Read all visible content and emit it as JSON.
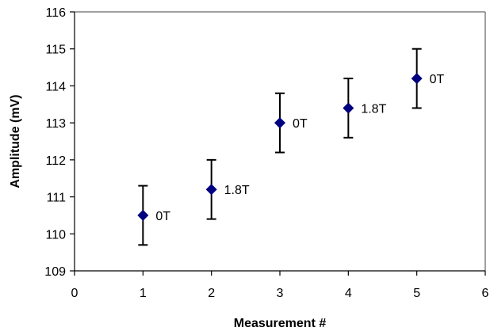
{
  "chart_data": {
    "type": "scatter",
    "title": "",
    "xlabel": "Measurement #",
    "ylabel": "Amplitude (mV)",
    "xlim": [
      0,
      6
    ],
    "ylim": [
      109,
      116
    ],
    "xticks": [
      0,
      1,
      2,
      3,
      4,
      5,
      6
    ],
    "yticks": [
      109,
      110,
      111,
      112,
      113,
      114,
      115,
      116
    ],
    "grid": false,
    "legend": "none",
    "marker_color": "#000080",
    "errorbar_color": "#000000",
    "points": [
      {
        "x": 1,
        "y": 110.5,
        "error": 0.8,
        "label": "0T"
      },
      {
        "x": 2,
        "y": 111.2,
        "error": 0.8,
        "label": "1.8T"
      },
      {
        "x": 3,
        "y": 113.0,
        "error": 0.8,
        "label": "0T"
      },
      {
        "x": 4,
        "y": 113.4,
        "error": 0.8,
        "label": "1.8T"
      },
      {
        "x": 5,
        "y": 114.2,
        "error": 0.8,
        "label": "0T"
      }
    ]
  }
}
